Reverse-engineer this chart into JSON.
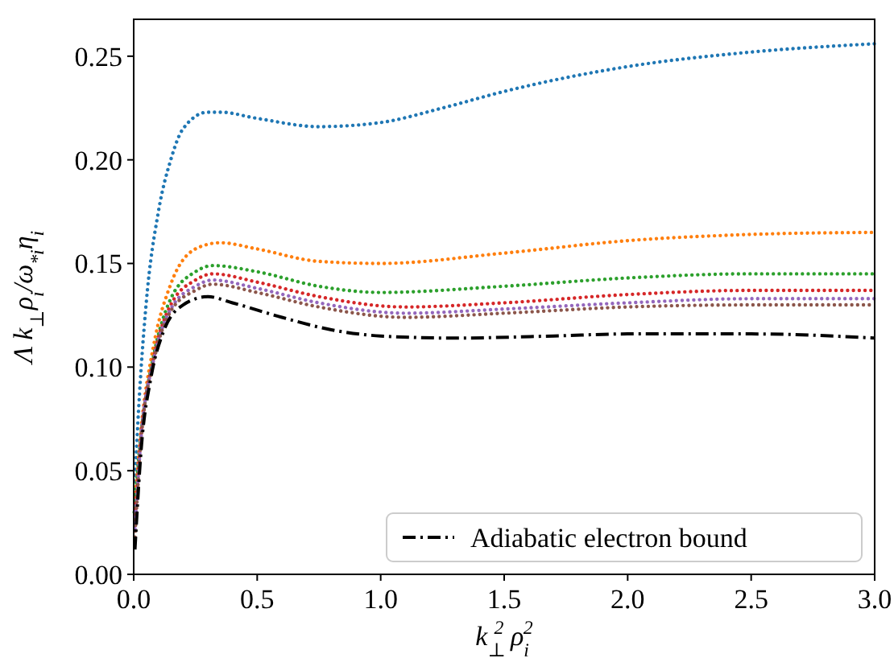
{
  "chart_data": {
    "type": "line",
    "xlabel": "k$_{⊥}$$^{2}$ ρ$_{i}$$^{2}$",
    "ylabel": "Λ k$_{⊥}$ρ$_{i}$/ω$_{*i}$η$_{i}$",
    "xlim": [
      0,
      3
    ],
    "ylim": [
      0,
      0.2678
    ],
    "xticks": [
      {
        "value": 0,
        "label": "0.0"
      },
      {
        "value": 0.5,
        "label": "0.5"
      },
      {
        "value": 1,
        "label": "1.0"
      },
      {
        "value": 1.5,
        "label": "1.5"
      },
      {
        "value": 2,
        "label": "2.0"
      },
      {
        "value": 2.5,
        "label": "2.5"
      },
      {
        "value": 3,
        "label": "3.0"
      }
    ],
    "yticks": [
      {
        "value": 0,
        "label": "0.00"
      },
      {
        "value": 0.05,
        "label": "0.05"
      },
      {
        "value": 0.1,
        "label": "0.10"
      },
      {
        "value": 0.15,
        "label": "0.15"
      },
      {
        "value": 0.2,
        "label": "0.20"
      },
      {
        "value": 0.25,
        "label": "0.25"
      }
    ],
    "legend": "bottom right",
    "grid": false,
    "marker": "none",
    "series": [
      {
        "color": "#1f77b4",
        "line_style": "dotted",
        "x": [
          0.005,
          0.02,
          0.05,
          0.1,
          0.15,
          0.2,
          0.3,
          0.35,
          0.5,
          0.75,
          1.0,
          1.25,
          1.5,
          2.0,
          2.5,
          3.0
        ],
        "values": [
          0.045,
          0.08,
          0.13,
          0.175,
          0.2,
          0.215,
          0.223,
          0.223,
          0.22,
          0.216,
          0.218,
          0.225,
          0.233,
          0.245,
          0.252,
          0.256
        ]
      },
      {
        "color": "#ff7f0e",
        "line_style": "dotted",
        "x": [
          0.005,
          0.03,
          0.08,
          0.15,
          0.25,
          0.35,
          0.5,
          0.75,
          1.0,
          1.5,
          2.0,
          2.5,
          3.0
        ],
        "values": [
          0.034,
          0.07,
          0.11,
          0.14,
          0.157,
          0.16,
          0.157,
          0.151,
          0.15,
          0.155,
          0.161,
          0.164,
          0.165
        ]
      },
      {
        "color": "#2ca02c",
        "line_style": "dotted",
        "x": [
          0.002,
          0.03,
          0.08,
          0.15,
          0.25,
          0.32,
          0.5,
          0.75,
          1.0,
          1.5,
          2.0,
          2.5,
          3.0
        ],
        "values": [
          0.03,
          0.068,
          0.105,
          0.133,
          0.146,
          0.149,
          0.146,
          0.139,
          0.136,
          0.139,
          0.143,
          0.145,
          0.145
        ]
      },
      {
        "color": "#d62728",
        "line_style": "dotted",
        "x": [
          0.005,
          0.03,
          0.08,
          0.15,
          0.25,
          0.32,
          0.5,
          0.75,
          1.1,
          1.5,
          2.0,
          2.5,
          3.0
        ],
        "values": [
          0.026,
          0.067,
          0.104,
          0.13,
          0.142,
          0.145,
          0.141,
          0.134,
          0.129,
          0.131,
          0.135,
          0.137,
          0.137
        ]
      },
      {
        "color": "#9467bd",
        "line_style": "dotted",
        "x": [
          0.005,
          0.03,
          0.08,
          0.15,
          0.25,
          0.32,
          0.5,
          0.75,
          1.1,
          1.5,
          2.0,
          2.5,
          3.0
        ],
        "values": [
          0.022,
          0.066,
          0.103,
          0.128,
          0.139,
          0.142,
          0.138,
          0.131,
          0.126,
          0.128,
          0.131,
          0.133,
          0.133
        ]
      },
      {
        "color": "#8c564b",
        "line_style": "dotted",
        "x": [
          0.005,
          0.03,
          0.08,
          0.15,
          0.25,
          0.32,
          0.5,
          0.75,
          1.1,
          1.5,
          2.0,
          2.5,
          3.0
        ],
        "values": [
          0.018,
          0.065,
          0.102,
          0.127,
          0.137,
          0.14,
          0.136,
          0.129,
          0.124,
          0.126,
          0.129,
          0.13,
          0.13
        ]
      },
      {
        "name": "Adiabatic electron bound",
        "color": "#000000",
        "line_style": "dashed",
        "x": [
          0.005,
          0.03,
          0.07,
          0.12,
          0.2,
          0.3,
          0.4,
          0.6,
          0.8,
          1.0,
          1.3,
          1.7,
          2.0,
          2.5,
          3.0
        ],
        "values": [
          0.012,
          0.06,
          0.095,
          0.117,
          0.13,
          0.134,
          0.131,
          0.124,
          0.118,
          0.115,
          0.114,
          0.115,
          0.116,
          0.116,
          0.114
        ]
      }
    ]
  }
}
